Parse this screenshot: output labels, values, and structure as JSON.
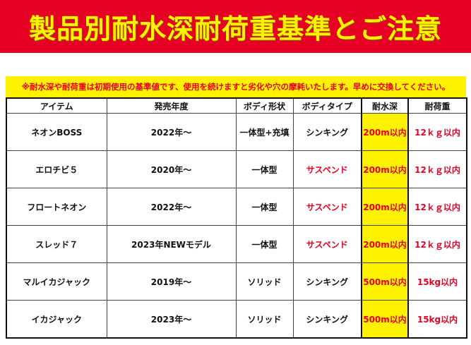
{
  "title": "製品別耐水深耐荷重基準とご注意",
  "notice": "※耐水深や耐荷重は初期使用の基準値です、使用を続けますと劣化や穴の摩耗いたします。早めに交換してください。",
  "colors": {
    "banner": "#e60023",
    "title": "#fff200",
    "highlight": "#fff200",
    "warning_text": "#e60023"
  },
  "table": {
    "headers": [
      "アイテム",
      "発売年度",
      "ボディ形状",
      "ボディタイプ",
      "耐水深",
      "耐荷重"
    ],
    "rows": [
      {
        "item": "ネオンBOSS",
        "year": "2022年～",
        "shape": "一体型+充填",
        "type": "シンキング",
        "depth": "200m以内",
        "load": "12ｋｇ以内"
      },
      {
        "item": "エロチビ５",
        "year": "2020年～",
        "shape": "一体型",
        "type": "サスペンド",
        "depth": "200m以内",
        "load": "12ｋｇ以内"
      },
      {
        "item": "フロートネオン",
        "year": "2022年～",
        "shape": "一体型",
        "type": "サスペンド",
        "depth": "200m以内",
        "load": "12ｋｇ以内"
      },
      {
        "item": "スレッド７",
        "year": "2023年NEWモデル",
        "shape": "一体型",
        "type": "サスペンド",
        "depth": "200m以内",
        "load": "12ｋｇ以内"
      },
      {
        "item": "マルイカジャック",
        "year": "2019年～",
        "shape": "ソリッド",
        "type": "シンキング",
        "depth": "500m以内",
        "load": "15kg以内"
      },
      {
        "item": "イカジャック",
        "year": "2023年～",
        "shape": "ソリッド",
        "type": "シンキング",
        "depth": "500m以内",
        "load": "15kg以内"
      }
    ]
  }
}
